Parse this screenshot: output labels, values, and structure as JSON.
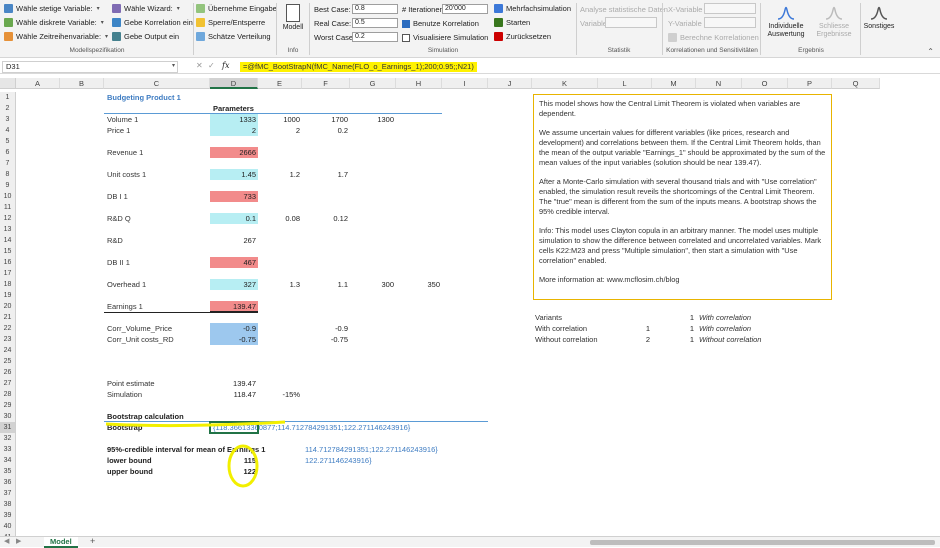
{
  "ribbon": {
    "model_spec": {
      "items": [
        "Wähle stetige Variable:",
        "Wähle diskrete Variable:",
        "Wähle Zeitreihenvariable:",
        "Wähle Wizard:",
        "Gebe Korrelation ein",
        "Gebe Output ein"
      ],
      "label": "Modellspezifikation"
    },
    "inputs": {
      "items": [
        "Übernehme Eingabe",
        "Sperre/Entsperre",
        "Schätze Verteilung"
      ]
    },
    "info": {
      "button": "Modell",
      "label": "Info"
    },
    "simulation": {
      "best_case_label": "Best Case:",
      "best_case_value": "0.8",
      "real_case_label": "Real Case:",
      "real_case_value": "0.5",
      "worst_case_label": "Worst Case:",
      "worst_case_value": "0.2",
      "iterations_label": "# Iterationen:",
      "iterations_value": "20'000",
      "use_correlation": "Benutze Korrelation",
      "visualize": "Visualisiere Simulation",
      "multi_sim": "Mehrfachsimulation",
      "start": "Starten",
      "reset": "Zurücksetzen",
      "label": "Simulation"
    },
    "statistics": {
      "analyze": "Analyse statistische Daten",
      "variable": "Variable",
      "label": "Statistik"
    },
    "correlations": {
      "x_var": "X-Variable",
      "y_var": "Y-Variable",
      "compute": "Berechne Korrelationen",
      "label": "Korrelationen und Sensitivitäten"
    },
    "results": {
      "individual": "Individuelle Auswertung",
      "close": "Schliesse Ergebnisse",
      "other": "Sonstiges",
      "label": "Ergebnis"
    }
  },
  "formula_bar": {
    "cell_ref": "D31",
    "formula": "=@fMC_BootStrapN(fMC_Name(FLO_o_Earnings_1);200;0.95;;N21)"
  },
  "columns": [
    "A",
    "B",
    "C",
    "D",
    "E",
    "F",
    "G",
    "H",
    "I",
    "J",
    "K",
    "L",
    "M",
    "N",
    "O",
    "P",
    "Q"
  ],
  "rows": [
    "1",
    "2",
    "3",
    "4",
    "5",
    "6",
    "7",
    "8",
    "9",
    "10",
    "11",
    "12",
    "13",
    "14",
    "15",
    "16",
    "17",
    "18",
    "19",
    "20",
    "21",
    "22",
    "23",
    "24",
    "25",
    "26",
    "27",
    "28",
    "29",
    "30",
    "31",
    "32",
    "33",
    "34",
    "35",
    "36",
    "37",
    "38",
    "39",
    "40",
    "41"
  ],
  "sheet": {
    "title": "Budgeting Product 1",
    "params_header": "Parameters",
    "volume": {
      "label": "Volume 1",
      "d": "1333",
      "e": "1000",
      "f": "1700",
      "g": "1300"
    },
    "price": {
      "label": "Price 1",
      "d": "2",
      "e": "2",
      "f": "0.2"
    },
    "revenue": {
      "label": "Revenue 1",
      "d": "2666"
    },
    "unit_costs": {
      "label": "Unit costs 1",
      "d": "1.45",
      "e": "1.2",
      "f": "1.7"
    },
    "db1": {
      "label": "DB I 1",
      "d": "733"
    },
    "rdq": {
      "label": "R&D Q",
      "d": "0.1",
      "e": "0.08",
      "f": "0.12"
    },
    "rd": {
      "label": "R&D",
      "d": "267"
    },
    "db2": {
      "label": "DB II 1",
      "d": "467"
    },
    "overhead": {
      "label": "Overhead 1",
      "d": "327",
      "e": "1.3",
      "f": "1.1",
      "g": "300",
      "h": "350"
    },
    "earnings": {
      "label": "Earnings 1",
      "d": "139.47"
    },
    "corr_vp": {
      "label": "Corr_Volume_Price",
      "d": "-0.9",
      "f": "-0.9"
    },
    "corr_uc": {
      "label": "Corr_Unit costs_RD",
      "d": "-0.75",
      "f": "-0.75"
    },
    "point_estimate": {
      "label": "Point estimate",
      "d": "139.47"
    },
    "simulation": {
      "label": "Simulation",
      "d": "118.47",
      "e": "-15%"
    },
    "bootstrap_calc": "Bootstrap calculation",
    "bootstrap": {
      "label": "Bootstrap",
      "value": "{118.36613360877;114.712784291351;122.271146243916}"
    },
    "credible": {
      "label": "95%-credible interval for mean of Earnings 1",
      "value": "114.712784291351;122.271146243916}"
    },
    "lower": {
      "label": "lower bound",
      "d": "115",
      "value": "122.271146243916}"
    },
    "upper": {
      "label": "upper bound",
      "d": "122"
    },
    "variants": {
      "header": "Variants",
      "header_n": "1",
      "header_text": "With correlation",
      "rows": [
        {
          "label": "With correlation",
          "num": "1",
          "n": "1",
          "text": "With correlation"
        },
        {
          "label": "Without correlation",
          "num": "2",
          "n": "1",
          "text": "Without correlation"
        }
      ]
    }
  },
  "note": {
    "paragraphs": [
      "This model shows how the Central Limit Theorem is violated when variables are dependent.",
      "We assume uncertain values for different variables (like prices, research and development) and correlations between them. If the Central Limit Theorem holds, than the mean of the output variable \"Earnings_1\" should be approximated by the sum of the mean values of the input variables (solution should be near 139.47).",
      "After a Monte-Carlo simulation with several thousand trials and with \"Use correlation\" enabled, the simulation result reveils the shortcomings of the Central Limit Theorem. The \"true\" mean is different from the sum of the inputs means. A bootstrap shows the 95% credible interval.",
      "Info: This model uses Clayton copula in an arbitrary manner.  The model uses multiple simulation to show the difference between correlated and uncorrelated variables. Mark cells K22:M23 and press \"Multiple simulation\", then start a simulation with \"Use correlation\" enabled.",
      "More information at: www.mcflosim.ch/blog"
    ]
  },
  "tabs": {
    "active": "Model",
    "add": "+"
  },
  "colors": {
    "cyan": "#b7eef3",
    "red": "#f28b8b",
    "blue": "#9dc8ee",
    "highlight": "#fff200",
    "accent": "#217346"
  }
}
